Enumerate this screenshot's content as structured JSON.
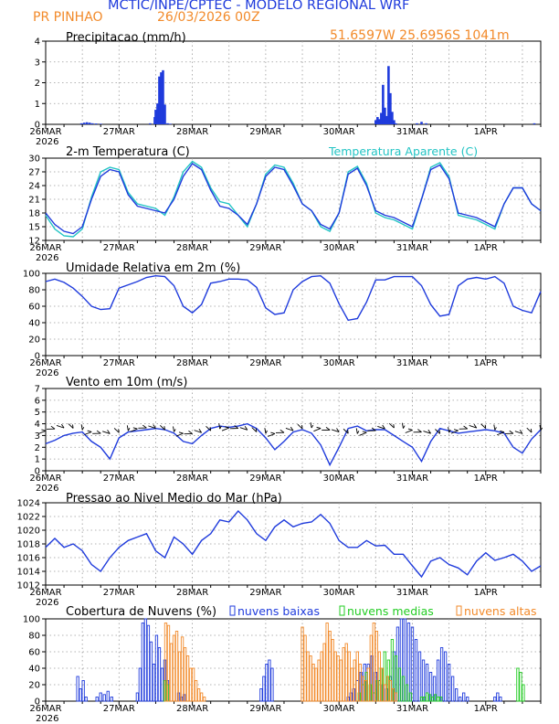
{
  "header": {
    "title": "MCTIC/INPE/CPTEC - MODELO REGIONAL WRF",
    "station": "PR PINHAO",
    "run": "26/03/2026 00Z",
    "location": "51.6597W 25.6956S 1041m"
  },
  "colors": {
    "blue": "#1f3bdc",
    "cyan": "#22c4c4",
    "orange": "#f28a2a",
    "green": "#22cc22",
    "grid": "#9a9a9a"
  },
  "x_axis": {
    "ticks": [
      "26MAR",
      "27MAR",
      "28MAR",
      "29MAR",
      "30MAR",
      "31MAR",
      "1APR"
    ],
    "year": "2026"
  },
  "chart_data": [
    {
      "type": "bar",
      "title": "Precipitacao (mm/h)",
      "ylim": [
        0,
        4
      ],
      "yticks": [
        "0",
        "1",
        "2",
        "3",
        "4"
      ],
      "x": [
        3.9,
        4.2,
        4.5,
        4.8,
        5.1,
        5.5,
        6.0,
        11.4,
        11.9,
        12.0,
        12.2,
        12.4,
        12.6,
        12.8,
        13.0,
        13.3,
        13.6,
        36.0,
        36.2,
        36.4,
        36.6,
        36.8,
        37.0,
        37.2,
        37.4,
        37.6,
        37.8,
        38.0,
        38.2,
        40.5,
        41.0,
        41.5,
        53.3
      ],
      "values": [
        0.05,
        0.08,
        0.1,
        0.08,
        0.05,
        0.04,
        0.03,
        0.05,
        0.35,
        0.7,
        1.0,
        2.3,
        2.5,
        2.6,
        0.95,
        0.05,
        0.03,
        0.2,
        0.35,
        0.25,
        0.55,
        1.9,
        0.8,
        0.4,
        2.8,
        1.5,
        0.6,
        0.2,
        0.05,
        0.05,
        0.12,
        0.05,
        0.05
      ]
    },
    {
      "type": "line",
      "title": "2-m Temperatura (C)",
      "legend": "Temperatura Aparente (C)",
      "ylim": [
        12,
        30
      ],
      "yticks": [
        "12",
        "15",
        "18",
        "21",
        "24",
        "27",
        "30"
      ],
      "x": [
        0,
        1,
        2,
        3,
        4,
        5,
        6,
        7,
        8,
        9,
        10,
        11,
        12,
        13,
        14,
        15,
        16,
        17,
        18,
        19,
        20,
        21,
        22,
        23,
        24,
        25,
        26,
        27,
        28,
        29,
        30,
        31,
        32,
        33,
        34,
        35,
        36,
        37,
        38,
        39,
        40,
        41,
        42,
        43,
        44,
        45,
        46,
        47,
        48,
        49,
        50,
        51,
        52,
        53,
        54
      ],
      "series": [
        {
          "name": "2-m Temperatura",
          "values": [
            18,
            15.5,
            14,
            13.5,
            15,
            21,
            26,
            27.5,
            27,
            22,
            19.5,
            19,
            18.5,
            18,
            21,
            26,
            28.8,
            27.5,
            23,
            19.5,
            19,
            17.5,
            15.5,
            20,
            26,
            28,
            27.5,
            24,
            20,
            18.5,
            15.5,
            14.5,
            18,
            26.5,
            27.8,
            24,
            18.5,
            17.5,
            17,
            16,
            15,
            21,
            27.5,
            28.5,
            25.5,
            18,
            17.5,
            17,
            16,
            15,
            20,
            23.5,
            23.5,
            20,
            18.5
          ]
        },
        {
          "name": "Temperatura Aparente",
          "values": [
            17.5,
            14.5,
            13,
            12.8,
            14.5,
            21.5,
            27,
            28,
            27.5,
            22.5,
            20,
            19.5,
            19,
            17.5,
            21.5,
            27,
            29.3,
            28,
            23.5,
            20.5,
            20,
            17.5,
            15,
            20,
            26.5,
            28.5,
            28,
            24.5,
            20,
            18.5,
            15,
            14,
            18,
            27,
            28.2,
            24.5,
            18,
            17,
            16.5,
            15.5,
            14.5,
            21,
            28,
            29,
            26,
            17.5,
            17,
            16.5,
            15.5,
            14.5,
            20,
            23.5,
            23.5,
            20,
            18.5
          ]
        }
      ]
    },
    {
      "type": "line",
      "title": "Umidade Relativa em 2m (%)",
      "ylim": [
        0,
        100
      ],
      "yticks": [
        "0",
        "20",
        "40",
        "60",
        "80",
        "100"
      ],
      "x": [
        0,
        1,
        2,
        3,
        4,
        5,
        6,
        7,
        8,
        9,
        10,
        11,
        12,
        13,
        14,
        15,
        16,
        17,
        18,
        19,
        20,
        21,
        22,
        23,
        24,
        25,
        26,
        27,
        28,
        29,
        30,
        31,
        32,
        33,
        34,
        35,
        36,
        37,
        38,
        39,
        40,
        41,
        42,
        43,
        44,
        45,
        46,
        47,
        48,
        49,
        50,
        51,
        52,
        53,
        54
      ],
      "series": [
        {
          "name": "Umidade Relativa",
          "values": [
            90,
            93,
            89,
            82,
            72,
            60,
            56,
            57,
            82,
            86,
            90,
            95,
            97,
            96,
            85,
            60,
            52,
            62,
            88,
            90,
            93,
            93,
            92,
            83,
            58,
            50,
            52,
            80,
            90,
            96,
            97,
            88,
            63,
            43,
            45,
            65,
            92,
            92,
            96,
            96,
            96,
            85,
            62,
            48,
            50,
            85,
            93,
            95,
            93,
            96,
            88,
            60,
            55,
            52,
            78
          ]
        }
      ]
    },
    {
      "type": "line",
      "title": "Vento em 10m (m/s)",
      "ylim": [
        0,
        7
      ],
      "yticks": [
        "0",
        "1",
        "2",
        "3",
        "4",
        "5",
        "6",
        "7"
      ],
      "x": [
        0,
        1,
        2,
        3,
        4,
        5,
        6,
        7,
        8,
        9,
        10,
        11,
        12,
        13,
        14,
        15,
        16,
        17,
        18,
        19,
        20,
        21,
        22,
        23,
        24,
        25,
        26,
        27,
        28,
        29,
        30,
        31,
        32,
        33,
        34,
        35,
        36,
        37,
        38,
        39,
        40,
        41,
        42,
        43,
        44,
        45,
        46,
        47,
        48,
        49,
        50,
        51,
        52,
        53,
        54
      ],
      "series": [
        {
          "name": "Vento",
          "values": [
            2.3,
            2.6,
            3.0,
            3.2,
            3.3,
            2.5,
            2.0,
            1.0,
            2.8,
            3.3,
            3.4,
            3.5,
            3.6,
            3.5,
            3.2,
            2.5,
            2.3,
            3.0,
            3.6,
            3.8,
            3.7,
            3.8,
            4.0,
            3.6,
            2.8,
            1.8,
            2.5,
            3.3,
            3.5,
            3.2,
            2.2,
            0.5,
            2.0,
            3.6,
            3.8,
            3.4,
            3.5,
            3.5,
            3.0,
            2.5,
            2.0,
            0.8,
            2.5,
            3.6,
            3.4,
            3.2,
            3.3,
            3.4,
            3.5,
            3.4,
            3.2,
            2.0,
            1.5,
            2.7,
            3.5
          ]
        }
      ]
    },
    {
      "type": "line",
      "title": "Pressao ao Nivel Medio do Mar (hPa)",
      "ylim": [
        1012,
        1024
      ],
      "yticks": [
        "1012",
        "1014",
        "1016",
        "1018",
        "1020",
        "1022",
        "1024"
      ],
      "x": [
        0,
        1,
        2,
        3,
        4,
        5,
        6,
        7,
        8,
        9,
        10,
        11,
        12,
        13,
        14,
        15,
        16,
        17,
        18,
        19,
        20,
        21,
        22,
        23,
        24,
        25,
        26,
        27,
        28,
        29,
        30,
        31,
        32,
        33,
        34,
        35,
        36,
        37,
        38,
        39,
        40,
        41,
        42,
        43,
        44,
        45,
        46,
        47,
        48,
        49,
        50,
        51,
        52,
        53,
        54
      ],
      "series": [
        {
          "name": "Pressao",
          "values": [
            1017.5,
            1018.8,
            1017.5,
            1018,
            1017,
            1015,
            1014,
            1016,
            1017.5,
            1018.5,
            1019,
            1019.5,
            1017,
            1016,
            1019,
            1018,
            1016.5,
            1018.5,
            1019.5,
            1021.5,
            1021.2,
            1022.8,
            1021.5,
            1019.5,
            1018.5,
            1020.5,
            1021.5,
            1020.5,
            1021,
            1021.2,
            1022.3,
            1021,
            1018.5,
            1017.5,
            1017.5,
            1018.5,
            1017.7,
            1017.8,
            1016.5,
            1016.5,
            1014.8,
            1013.2,
            1015.5,
            1016,
            1015,
            1014.5,
            1013.5,
            1015.5,
            1016.7,
            1015.6,
            1016,
            1016.5,
            1015.5,
            1014,
            1014.8
          ]
        }
      ]
    },
    {
      "type": "bar",
      "title": "Cobertura de Nuvens (%)",
      "legend": [
        "nuvens baixas",
        "nuvens medias",
        "nuvens altas"
      ],
      "ylim": [
        0,
        100
      ],
      "yticks": [
        "0",
        "20",
        "40",
        "60",
        "80",
        "100"
      ],
      "series": [
        {
          "name": "nuvens baixas",
          "x": [
            3.5,
            3.8,
            4.1,
            4.4,
            5.6,
            6.0,
            6.4,
            6.8,
            7.2,
            10.0,
            10.3,
            10.6,
            10.9,
            11.2,
            11.5,
            11.8,
            12.1,
            12.4,
            12.7,
            13.0,
            13.3,
            14.5,
            14.8,
            15.1,
            23.5,
            23.8,
            24.1,
            24.4,
            24.7,
            33.0,
            33.3,
            33.6,
            34.0,
            34.4,
            34.8,
            35.2,
            35.6,
            36.0,
            36.4,
            36.8,
            37.2,
            37.6,
            38.0,
            38.4,
            38.8,
            39.2,
            39.6,
            40.0,
            40.4,
            40.8,
            41.2,
            41.6,
            42.0,
            42.4,
            42.8,
            43.2,
            43.6,
            44.0,
            44.4,
            44.8,
            45.2,
            45.6,
            46.0,
            49.0,
            49.3,
            49.6
          ],
          "values": [
            30,
            15,
            25,
            5,
            5,
            10,
            8,
            12,
            5,
            10,
            40,
            95,
            100,
            92,
            72,
            45,
            80,
            65,
            40,
            50,
            25,
            10,
            5,
            8,
            15,
            30,
            45,
            50,
            40,
            5,
            10,
            15,
            25,
            35,
            45,
            45,
            55,
            35,
            25,
            20,
            15,
            30,
            60,
            90,
            100,
            100,
            95,
            90,
            75,
            60,
            50,
            45,
            35,
            30,
            50,
            65,
            60,
            45,
            30,
            15,
            5,
            10,
            5,
            5,
            10,
            5
          ]
        },
        {
          "name": "nuvens medias",
          "x": [
            13.0,
            13.3,
            34.2,
            34.6,
            35.0,
            35.4,
            35.8,
            36.2,
            36.6,
            37.0,
            37.4,
            37.8,
            38.2,
            38.6,
            39.0,
            39.4,
            39.8,
            41.0,
            41.3,
            41.6,
            41.9,
            42.2,
            42.5,
            42.8,
            43.1,
            51.5,
            51.8,
            52.1
          ],
          "values": [
            25,
            20,
            10,
            20,
            35,
            20,
            10,
            25,
            40,
            60,
            50,
            75,
            55,
            40,
            30,
            20,
            10,
            5,
            5,
            10,
            8,
            5,
            8,
            5,
            5,
            40,
            35,
            20
          ]
        },
        {
          "name": "nuvens altas",
          "x": [
            13.1,
            13.4,
            13.7,
            14.0,
            14.3,
            14.6,
            14.9,
            15.2,
            15.5,
            15.8,
            16.1,
            16.4,
            16.7,
            17.0,
            17.3,
            28.0,
            28.3,
            28.6,
            28.9,
            29.2,
            29.5,
            29.8,
            30.1,
            30.4,
            30.7,
            31.0,
            31.3,
            31.6,
            31.9,
            32.2,
            32.5,
            32.8,
            33.1,
            33.4,
            33.7,
            34.0,
            34.3,
            34.6,
            34.9,
            35.2,
            35.5,
            35.8,
            36.1,
            36.4,
            36.7,
            37.0,
            37.3,
            37.6,
            37.9,
            38.2
          ],
          "values": [
            95,
            92,
            70,
            80,
            85,
            60,
            78,
            65,
            55,
            40,
            40,
            25,
            15,
            10,
            5,
            90,
            80,
            60,
            55,
            45,
            40,
            50,
            60,
            70,
            95,
            85,
            75,
            60,
            55,
            50,
            65,
            70,
            60,
            40,
            50,
            60,
            45,
            30,
            25,
            40,
            80,
            95,
            85,
            60,
            40,
            20,
            30,
            25,
            15,
            10
          ]
        }
      ]
    }
  ]
}
